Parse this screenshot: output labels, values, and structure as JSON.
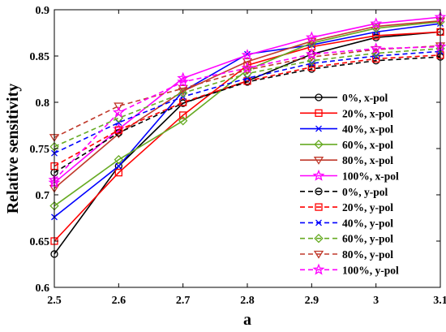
{
  "chart_data": {
    "type": "line",
    "xlabel": "a",
    "ylabel": "Relative sensitivity",
    "xlim": [
      2.5,
      3.1
    ],
    "ylim": [
      0.6,
      0.9
    ],
    "xticks": [
      "2.5",
      "2.6",
      "2.7",
      "2.8",
      "2.9",
      "3",
      "3.1"
    ],
    "yticks": [
      "0.6",
      "0.65",
      "0.7",
      "0.75",
      "0.8",
      "0.85",
      "0.9"
    ],
    "legend_position": "right",
    "grid": false,
    "x": [
      2.5,
      2.6,
      2.7,
      2.8,
      2.9,
      3.0,
      3.1
    ],
    "series": [
      {
        "name": "0%, x-pol",
        "color": "#000000",
        "dash": "solid",
        "marker": "circle",
        "values": [
          0.636,
          0.731,
          0.799,
          0.823,
          0.852,
          0.87,
          0.876
        ]
      },
      {
        "name": "20%, x-pol",
        "color": "#ff0000",
        "dash": "solid",
        "marker": "square",
        "values": [
          0.65,
          0.724,
          0.786,
          0.84,
          0.86,
          0.872,
          0.876
        ]
      },
      {
        "name": "40%, x-pol",
        "color": "#0000ff",
        "dash": "solid",
        "marker": "x",
        "values": [
          0.676,
          0.731,
          0.812,
          0.852,
          0.862,
          0.876,
          0.885
        ]
      },
      {
        "name": "60%, x-pol",
        "color": "#66aa22",
        "dash": "solid",
        "marker": "diamond",
        "values": [
          0.688,
          0.738,
          0.78,
          0.835,
          0.864,
          0.88,
          0.887
        ]
      },
      {
        "name": "80%, x-pol",
        "color": "#c0392b",
        "dash": "solid",
        "marker": "triangle-down",
        "values": [
          0.707,
          0.766,
          0.812,
          0.844,
          0.866,
          0.882,
          0.888
        ]
      },
      {
        "name": "100%, x-pol",
        "color": "#ff00ff",
        "dash": "solid",
        "marker": "star",
        "values": [
          0.713,
          0.771,
          0.826,
          0.851,
          0.87,
          0.885,
          0.892
        ]
      },
      {
        "name": "0%, y-pol",
        "color": "#000000",
        "dash": "dashed",
        "marker": "circle",
        "values": [
          0.724,
          0.767,
          0.799,
          0.822,
          0.836,
          0.845,
          0.849
        ]
      },
      {
        "name": "20%, y-pol",
        "color": "#ff0000",
        "dash": "dashed",
        "marker": "square",
        "values": [
          0.731,
          0.77,
          0.8,
          0.823,
          0.838,
          0.847,
          0.851
        ]
      },
      {
        "name": "40%, y-pol",
        "color": "#0000ff",
        "dash": "dashed",
        "marker": "x",
        "values": [
          0.745,
          0.778,
          0.806,
          0.826,
          0.842,
          0.85,
          0.855
        ]
      },
      {
        "name": "60%, y-pol",
        "color": "#66aa22",
        "dash": "dashed",
        "marker": "diamond",
        "values": [
          0.752,
          0.783,
          0.81,
          0.831,
          0.845,
          0.853,
          0.858
        ]
      },
      {
        "name": "80%, y-pol",
        "color": "#c0392b",
        "dash": "dashed",
        "marker": "triangle-down",
        "values": [
          0.762,
          0.796,
          0.815,
          0.835,
          0.849,
          0.857,
          0.861
        ]
      },
      {
        "name": "100%, y-pol",
        "color": "#ff00ff",
        "dash": "dashed",
        "marker": "star",
        "values": [
          0.716,
          0.789,
          0.822,
          0.837,
          0.852,
          0.858,
          0.86
        ]
      }
    ]
  }
}
